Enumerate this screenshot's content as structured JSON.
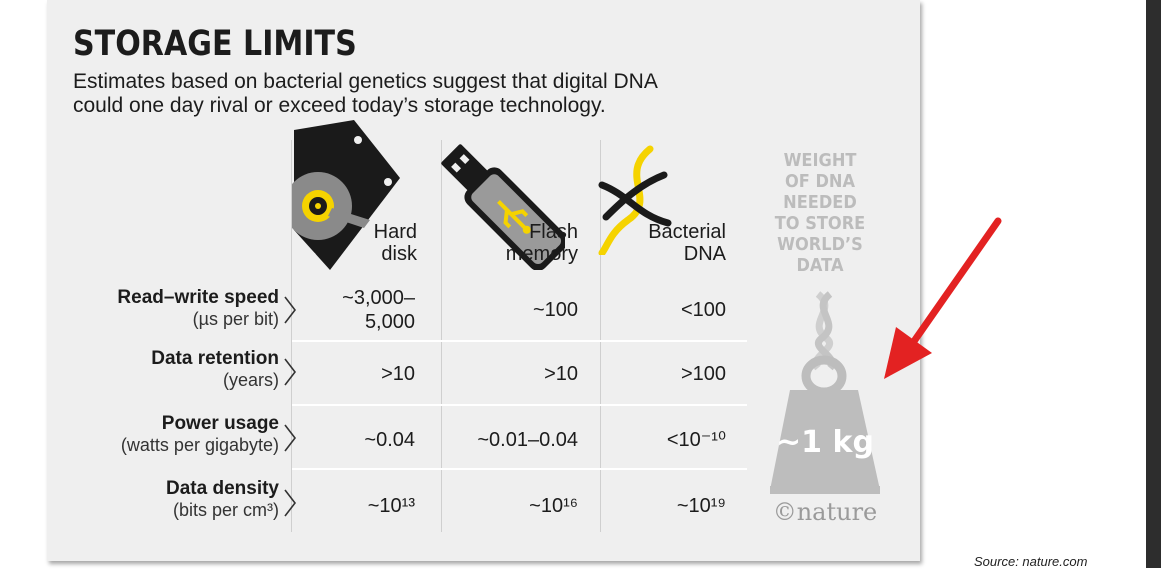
{
  "title": "STORAGE LIMITS",
  "subtitle": "Estimates based on bacterial genetics suggest that digital DNA\ncould one day rival or exceed today’s storage technology.",
  "columns": [
    {
      "label": "Hard\ndisk",
      "icon": "hard-disk-icon"
    },
    {
      "label": "Flash\nmemory",
      "icon": "usb-flash-drive-icon"
    },
    {
      "label": "Bacterial\nDNA",
      "icon": "dna-helix-icon"
    }
  ],
  "rows": [
    {
      "label": "Read–write speed",
      "unit": "(µs per bit)",
      "values": [
        "~3,000–\n5,000",
        "~100",
        "<100"
      ]
    },
    {
      "label": "Data retention",
      "unit": "(years)",
      "values": [
        ">10",
        ">10",
        ">100"
      ]
    },
    {
      "label": "Power usage",
      "unit": "(watts per gigabyte)",
      "values": [
        "~0.04",
        "~0.01–0.04",
        "<10⁻¹⁰"
      ]
    },
    {
      "label": "Data density",
      "unit": "(bits per cm³)",
      "values": [
        "~10¹³",
        "~10¹⁶",
        "~10¹⁹"
      ]
    }
  ],
  "weight": {
    "title": "WEIGHT\nOF DNA\nNEEDED\nTO STORE\nWORLD’S\nDATA",
    "value": "~1 kg",
    "icon": "kettlebell-weight-icon"
  },
  "credit": "©nature",
  "source": "Source: nature.com",
  "colors": {
    "background": "#efefef",
    "accent_yellow": "#f5d300",
    "arrow_red": "#e32222",
    "weight_gray": "#bdbdbd",
    "text": "#1c1c1c"
  }
}
